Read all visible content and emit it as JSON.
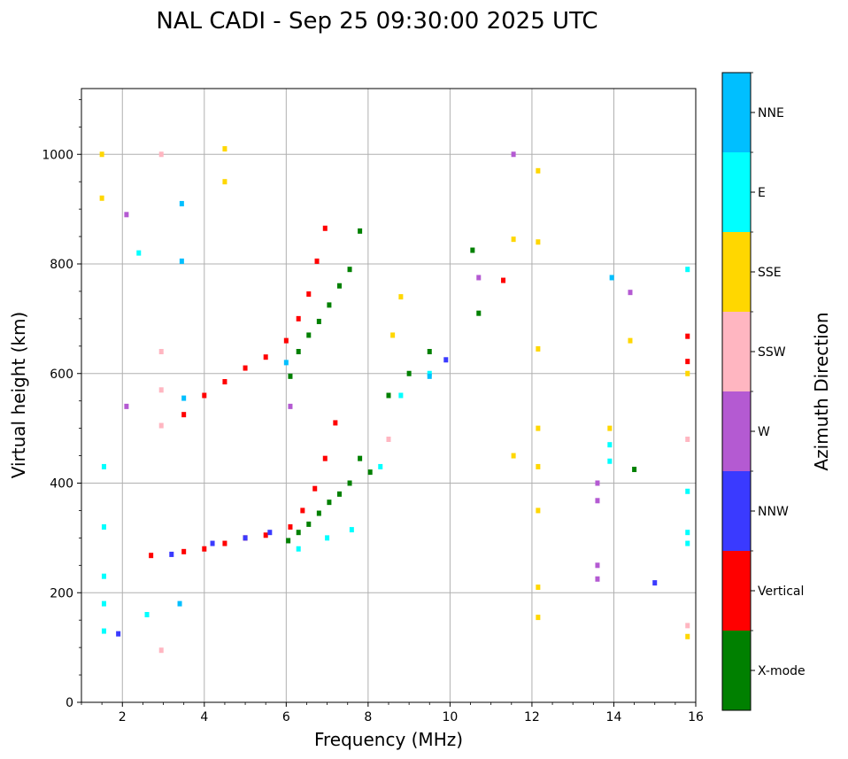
{
  "chart_data": {
    "type": "scatter",
    "title": "NAL CADI - Sep 25 09:30:00 2025 UTC",
    "xlabel": "Frequency (MHz)",
    "ylabel": "Virtual height (km)",
    "xlim": [
      1,
      16
    ],
    "ylim": [
      0,
      1120
    ],
    "xticks": [
      2,
      4,
      6,
      8,
      10,
      12,
      14,
      16
    ],
    "yticks": [
      0,
      200,
      400,
      600,
      800,
      1000
    ],
    "grid": true,
    "colorbar": {
      "label": "Azimuth Direction",
      "categories": [
        {
          "name": "X-mode",
          "color": "#008000"
        },
        {
          "name": "Vertical",
          "color": "#ff0000"
        },
        {
          "name": "NNW",
          "color": "#3a3aff"
        },
        {
          "name": "W",
          "color": "#b45ad2"
        },
        {
          "name": "SSW",
          "color": "#ffb6c1"
        },
        {
          "name": "SSE",
          "color": "#ffd700"
        },
        {
          "name": "E",
          "color": "#00ffff"
        },
        {
          "name": "NNE",
          "color": "#00bfff"
        }
      ]
    },
    "series": [
      {
        "name": "X-mode",
        "points": [
          [
            6.05,
            295
          ],
          [
            6.3,
            310
          ],
          [
            6.55,
            325
          ],
          [
            6.8,
            345
          ],
          [
            7.05,
            365
          ],
          [
            7.3,
            380
          ],
          [
            7.55,
            400
          ],
          [
            7.8,
            445
          ],
          [
            8.05,
            420
          ],
          [
            8.5,
            560
          ],
          [
            9.0,
            600
          ],
          [
            9.5,
            640
          ],
          [
            6.1,
            595
          ],
          [
            6.3,
            640
          ],
          [
            6.55,
            670
          ],
          [
            6.8,
            695
          ],
          [
            7.05,
            725
          ],
          [
            7.3,
            760
          ],
          [
            7.55,
            790
          ],
          [
            7.8,
            860
          ],
          [
            10.55,
            825
          ],
          [
            10.7,
            710
          ],
          [
            14.5,
            425
          ]
        ]
      },
      {
        "name": "Vertical",
        "points": [
          [
            2.7,
            268
          ],
          [
            3.5,
            275
          ],
          [
            4.0,
            280
          ],
          [
            4.5,
            290
          ],
          [
            5.0,
            300
          ],
          [
            5.5,
            305
          ],
          [
            6.1,
            320
          ],
          [
            6.4,
            350
          ],
          [
            6.7,
            390
          ],
          [
            6.95,
            445
          ],
          [
            7.2,
            510
          ],
          [
            3.5,
            525
          ],
          [
            4.0,
            560
          ],
          [
            4.5,
            585
          ],
          [
            5.0,
            610
          ],
          [
            5.5,
            630
          ],
          [
            6.0,
            660
          ],
          [
            6.3,
            700
          ],
          [
            6.55,
            745
          ],
          [
            6.75,
            805
          ],
          [
            6.95,
            865
          ],
          [
            11.3,
            770
          ],
          [
            15.8,
            668
          ],
          [
            15.8,
            622
          ]
        ]
      },
      {
        "name": "NNW",
        "points": [
          [
            1.9,
            125
          ],
          [
            3.2,
            270
          ],
          [
            4.2,
            290
          ],
          [
            5.0,
            300
          ],
          [
            5.6,
            310
          ],
          [
            9.9,
            625
          ],
          [
            15.0,
            218
          ]
        ]
      },
      {
        "name": "W",
        "points": [
          [
            2.1,
            540
          ],
          [
            2.1,
            890
          ],
          [
            6.1,
            540
          ],
          [
            11.55,
            1000
          ],
          [
            10.7,
            775
          ],
          [
            13.6,
            400
          ],
          [
            13.6,
            368
          ],
          [
            13.6,
            250
          ],
          [
            13.6,
            225
          ],
          [
            14.4,
            748
          ]
        ]
      },
      {
        "name": "SSW",
        "points": [
          [
            2.95,
            1000
          ],
          [
            2.95,
            640
          ],
          [
            2.95,
            570
          ],
          [
            2.95,
            505
          ],
          [
            2.95,
            95
          ],
          [
            8.5,
            480
          ],
          [
            15.8,
            480
          ],
          [
            15.8,
            140
          ]
        ]
      },
      {
        "name": "SSE",
        "points": [
          [
            1.5,
            1000
          ],
          [
            1.5,
            920
          ],
          [
            4.5,
            1010
          ],
          [
            4.5,
            950
          ],
          [
            8.8,
            740
          ],
          [
            8.6,
            670
          ],
          [
            12.15,
            970
          ],
          [
            12.15,
            840
          ],
          [
            12.15,
            645
          ],
          [
            12.15,
            500
          ],
          [
            12.15,
            430
          ],
          [
            12.15,
            350
          ],
          [
            12.15,
            210
          ],
          [
            12.15,
            155
          ],
          [
            11.55,
            845
          ],
          [
            11.55,
            450
          ],
          [
            13.9,
            500
          ],
          [
            14.4,
            660
          ],
          [
            15.8,
            600
          ],
          [
            15.8,
            120
          ]
        ]
      },
      {
        "name": "E",
        "points": [
          [
            1.55,
            430
          ],
          [
            1.55,
            320
          ],
          [
            1.55,
            230
          ],
          [
            1.55,
            180
          ],
          [
            1.55,
            130
          ],
          [
            2.4,
            820
          ],
          [
            2.6,
            160
          ],
          [
            6.3,
            280
          ],
          [
            7.0,
            300
          ],
          [
            7.6,
            315
          ],
          [
            8.3,
            430
          ],
          [
            8.8,
            560
          ],
          [
            9.5,
            600
          ],
          [
            13.9,
            470
          ],
          [
            13.9,
            440
          ],
          [
            15.8,
            790
          ],
          [
            15.8,
            385
          ],
          [
            15.8,
            290
          ],
          [
            15.8,
            310
          ]
        ]
      },
      {
        "name": "NNE",
        "points": [
          [
            3.45,
            910
          ],
          [
            3.45,
            805
          ],
          [
            3.5,
            555
          ],
          [
            3.4,
            180
          ],
          [
            6.0,
            620
          ],
          [
            9.5,
            595
          ],
          [
            13.95,
            775
          ]
        ]
      }
    ]
  }
}
